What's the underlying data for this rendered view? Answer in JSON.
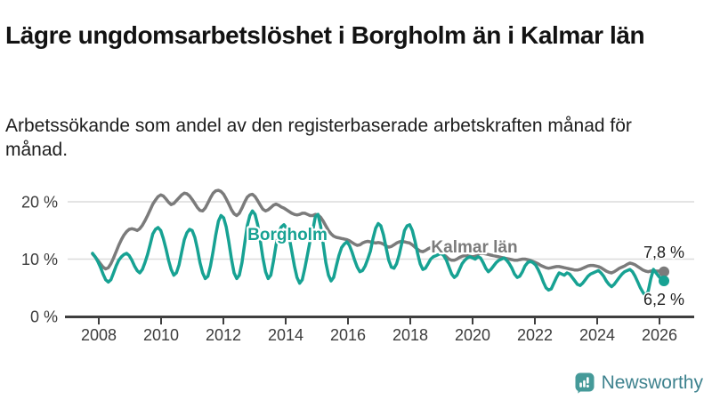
{
  "header": {
    "title": "Lägre ungdomsarbetslöshet i Borgholm än i Kalmar län",
    "subtitle": "Arbetssökande som andel av den registerbaserade arbetskraften månad för månad."
  },
  "footer": {
    "brand": "Newsworthy",
    "brand_icon": "bar-chart-speech-bubble-icon",
    "brand_color": "#3E828E",
    "icon_color": "#459a99"
  },
  "chart_data": {
    "type": "line",
    "title": "Lägre ungdomsarbetslöshet i Borgholm än i Kalmar län",
    "unit": "%",
    "x_start": "2008-01",
    "x_end": "2026-03",
    "months_per_point": 1,
    "ylim": [
      0,
      23.5
    ],
    "grid": true,
    "axis_color": "#3f3f3f",
    "grid_color": "#dcdcdc",
    "y_ticks": [
      {
        "value": 0,
        "label": "0 %"
      },
      {
        "value": 10,
        "label": "10 %"
      },
      {
        "value": 20,
        "label": "20 %"
      }
    ],
    "x_ticks": [
      {
        "year": 2008,
        "label": "2008"
      },
      {
        "year": 2010,
        "label": "2010"
      },
      {
        "year": 2012,
        "label": "2012"
      },
      {
        "year": 2014,
        "label": "2014"
      },
      {
        "year": 2016,
        "label": "2016"
      },
      {
        "year": 2018,
        "label": "2018"
      },
      {
        "year": 2020,
        "label": "2020"
      },
      {
        "year": 2022,
        "label": "2022"
      },
      {
        "year": 2024,
        "label": "2024"
      },
      {
        "year": 2026,
        "label": "2026"
      }
    ],
    "series": [
      {
        "name": "Kalmar län",
        "color": "#7b7b7b",
        "end_label": "7,8 %",
        "end_value": 7.8,
        "values": [
          10.9,
          10.4,
          9.8,
          9.2,
          8.6,
          8.3,
          8.5,
          9.2,
          10.2,
          11.3,
          12.4,
          13.4,
          14.2,
          14.8,
          15.2,
          15.3,
          15.2,
          15.0,
          15.3,
          15.9,
          16.7,
          17.6,
          18.6,
          19.6,
          20.3,
          20.9,
          21.2,
          21.0,
          20.5,
          19.9,
          19.5,
          19.7,
          20.2,
          20.7,
          21.2,
          21.5,
          21.4,
          21.0,
          20.4,
          19.7,
          19.0,
          18.5,
          18.4,
          18.9,
          19.8,
          20.7,
          21.5,
          21.9,
          22.0,
          21.8,
          21.3,
          20.5,
          19.6,
          18.6,
          17.9,
          17.6,
          18.0,
          18.9,
          19.9,
          20.8,
          21.2,
          21.3,
          20.9,
          20.2,
          19.4,
          18.7,
          18.4,
          18.6,
          19.0,
          19.4,
          19.6,
          19.4,
          19.1,
          18.9,
          18.6,
          18.3,
          18.0,
          17.8,
          17.7,
          17.8,
          18.0,
          18.0,
          17.8,
          17.6,
          17.6,
          17.8,
          17.7,
          17.3,
          16.6,
          15.8,
          15.0,
          14.4,
          14.0,
          13.8,
          13.7,
          13.6,
          13.5,
          13.4,
          13.2,
          12.9,
          12.6,
          12.4,
          12.5,
          12.8,
          13.0,
          13.1,
          13.0,
          12.9,
          12.8,
          12.9,
          12.8,
          12.6,
          12.3,
          12.1,
          12.2,
          12.5,
          12.8,
          13.0,
          13.1,
          13.0,
          12.9,
          12.8,
          12.5,
          12.1,
          11.7,
          11.4,
          11.3,
          11.5,
          11.8,
          12.0,
          12.0,
          11.8,
          11.5,
          11.2,
          10.8,
          10.4,
          10.0,
          9.8,
          9.8,
          10.0,
          10.3,
          10.5,
          10.6,
          10.6,
          10.5,
          10.4,
          10.5,
          10.8,
          11.0,
          11.0,
          10.9,
          10.8,
          10.7,
          10.6,
          10.5,
          10.4,
          10.3,
          10.2,
          10.1,
          10.0,
          9.9,
          9.8,
          9.8,
          9.9,
          10.0,
          10.0,
          9.9,
          9.8,
          9.6,
          9.4,
          9.2,
          8.9,
          8.7,
          8.5,
          8.4,
          8.5,
          8.6,
          8.7,
          8.7,
          8.6,
          8.5,
          8.4,
          8.3,
          8.2,
          8.1,
          8.1,
          8.2,
          8.4,
          8.6,
          8.8,
          8.9,
          8.9,
          8.8,
          8.7,
          8.5,
          8.2,
          7.9,
          7.7,
          7.6,
          7.8,
          8.1,
          8.4,
          8.6,
          8.8,
          9.1,
          9.3,
          9.2,
          9.0,
          8.7,
          8.4,
          8.1,
          7.9,
          7.8,
          7.9,
          8.0,
          7.9,
          7.9,
          7.8,
          7.8
        ]
      },
      {
        "name": "Borgholm",
        "color": "#17a293",
        "end_label": "6,2 %",
        "end_value": 6.2,
        "values": [
          11.0,
          10.4,
          9.6,
          8.6,
          7.4,
          6.4,
          6.0,
          6.4,
          7.6,
          8.8,
          9.8,
          10.4,
          10.8,
          11.0,
          10.6,
          9.8,
          8.8,
          8.0,
          7.6,
          8.2,
          9.4,
          10.8,
          12.6,
          14.4,
          15.2,
          15.5,
          15.0,
          13.6,
          11.8,
          9.8,
          8.2,
          7.2,
          7.6,
          9.0,
          11.2,
          13.4,
          14.6,
          15.2,
          15.0,
          13.8,
          11.8,
          9.4,
          7.6,
          6.6,
          7.0,
          8.8,
          11.4,
          14.2,
          16.6,
          17.6,
          17.2,
          15.6,
          13.0,
          10.0,
          7.6,
          6.6,
          7.2,
          9.4,
          12.6,
          15.8,
          17.6,
          18.4,
          17.8,
          16.0,
          13.2,
          10.2,
          7.8,
          6.6,
          7.2,
          9.6,
          12.4,
          14.6,
          15.6,
          16.0,
          15.4,
          13.8,
          11.4,
          8.8,
          6.8,
          5.8,
          6.4,
          8.4,
          10.8,
          13.2,
          15.0,
          17.4,
          17.8,
          15.8,
          12.6,
          9.4,
          7.2,
          6.2,
          6.8,
          8.8,
          10.6,
          12.0,
          12.6,
          13.0,
          12.4,
          11.2,
          9.8,
          8.6,
          7.8,
          8.0,
          8.8,
          10.0,
          11.4,
          13.6,
          15.4,
          16.2,
          15.8,
          14.2,
          12.0,
          9.8,
          8.6,
          8.4,
          9.2,
          10.8,
          12.8,
          15.0,
          15.8,
          16.0,
          15.0,
          13.2,
          11.0,
          9.2,
          8.2,
          8.4,
          9.2,
          10.0,
          10.4,
          10.6,
          10.8,
          11.0,
          10.6,
          9.8,
          8.6,
          7.4,
          6.8,
          7.2,
          8.2,
          9.2,
          9.8,
          10.2,
          10.4,
          10.2,
          10.0,
          10.4,
          10.2,
          9.4,
          8.4,
          7.8,
          8.2,
          8.8,
          9.4,
          9.8,
          10.0,
          10.2,
          9.8,
          9.2,
          8.4,
          7.4,
          6.8,
          7.0,
          7.8,
          8.8,
          9.4,
          9.6,
          9.4,
          9.0,
          8.2,
          7.2,
          6.0,
          5.0,
          4.6,
          4.8,
          5.8,
          6.8,
          7.6,
          7.4,
          7.2,
          7.6,
          7.4,
          6.8,
          6.2,
          5.6,
          5.4,
          5.8,
          6.4,
          7.0,
          7.4,
          7.6,
          7.8,
          8.0,
          7.6,
          7.0,
          6.2,
          5.6,
          5.2,
          5.6,
          6.2,
          6.8,
          7.4,
          7.8,
          8.0,
          8.2,
          7.8,
          7.0,
          6.0,
          5.0,
          4.2,
          3.6,
          4.4,
          6.6,
          8.2,
          7.6,
          7.0,
          6.5,
          6.2
        ]
      }
    ],
    "legend_position": "inline-labels"
  }
}
